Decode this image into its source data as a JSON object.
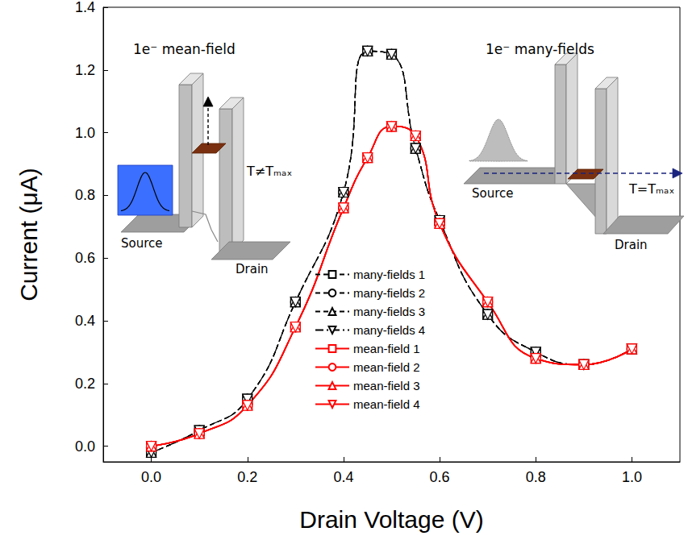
{
  "chart_data": {
    "type": "line",
    "xlabel": "Drain Voltage (V)",
    "ylabel": "Current (μA)",
    "x": [
      0,
      0.1,
      0.2,
      0.3,
      0.4,
      0.45,
      0.5,
      0.55,
      0.6,
      0.7,
      0.8,
      0.9,
      1.0
    ],
    "series": [
      {
        "name": "many-fields 1",
        "color": "#000000",
        "marker": "square",
        "line_style": "dashed",
        "values": [
          -0.02,
          0.05,
          0.15,
          0.46,
          0.81,
          1.26,
          1.25,
          0.95,
          0.72,
          0.42,
          0.3,
          0.26,
          0.31
        ]
      },
      {
        "name": "many-fields 2",
        "color": "#000000",
        "marker": "circle",
        "line_style": "dashed",
        "values": [
          -0.02,
          0.05,
          0.15,
          0.46,
          0.81,
          1.26,
          1.25,
          0.95,
          0.72,
          0.42,
          0.3,
          0.26,
          0.31
        ]
      },
      {
        "name": "many-fields 3",
        "color": "#000000",
        "marker": "triangle",
        "line_style": "dashed",
        "values": [
          -0.02,
          0.05,
          0.15,
          0.46,
          0.81,
          1.26,
          1.25,
          0.95,
          0.72,
          0.42,
          0.3,
          0.26,
          0.31
        ]
      },
      {
        "name": "many-fields 4",
        "color": "#000000",
        "marker": "down-triangle",
        "line_style": "dashdot",
        "values": [
          -0.02,
          0.05,
          0.15,
          0.46,
          0.81,
          1.26,
          1.25,
          0.95,
          0.72,
          0.42,
          0.3,
          0.26,
          0.31
        ]
      },
      {
        "name": "mean-field 1",
        "color": "#ff0000",
        "marker": "square",
        "line_style": "solid",
        "values": [
          0.0,
          0.04,
          0.13,
          0.38,
          0.76,
          0.92,
          1.02,
          0.99,
          0.71,
          0.46,
          0.28,
          0.26,
          0.31
        ]
      },
      {
        "name": "mean-field 2",
        "color": "#ff0000",
        "marker": "circle",
        "line_style": "solid",
        "values": [
          0.0,
          0.04,
          0.13,
          0.38,
          0.76,
          0.92,
          1.02,
          0.99,
          0.71,
          0.46,
          0.28,
          0.26,
          0.31
        ]
      },
      {
        "name": "mean-field 3",
        "color": "#ff0000",
        "marker": "triangle",
        "line_style": "solid",
        "values": [
          0.0,
          0.04,
          0.13,
          0.38,
          0.76,
          0.92,
          1.02,
          0.99,
          0.71,
          0.46,
          0.28,
          0.26,
          0.31
        ]
      },
      {
        "name": "mean-field 4",
        "color": "#ff0000",
        "marker": "down-triangle",
        "line_style": "solid",
        "values": [
          0.0,
          0.04,
          0.13,
          0.38,
          0.76,
          0.92,
          1.02,
          0.99,
          0.71,
          0.46,
          0.28,
          0.26,
          0.31
        ]
      }
    ],
    "xlim": [
      -0.1,
      1.1
    ],
    "xticks": [
      {
        "value": 0,
        "label": "0.0"
      },
      0.2,
      0.4,
      0.6,
      0.8,
      {
        "value": 1,
        "label": "1.0"
      }
    ],
    "ylim": [
      -0.05,
      1.4
    ],
    "yticks": [
      {
        "value": 0,
        "label": "0.0"
      },
      0.2,
      0.4,
      0.6,
      0.8,
      {
        "value": 1,
        "label": "1.0"
      },
      1.2,
      1.4
    ],
    "grid": false,
    "legend": "center",
    "annotations": [
      "1e⁻ mean-field",
      "Source",
      "Drain",
      "T≠Tₘₐₓ",
      "1e⁻ many-fields",
      "Source",
      "Drain",
      "T=Tₘₐₓ"
    ]
  }
}
